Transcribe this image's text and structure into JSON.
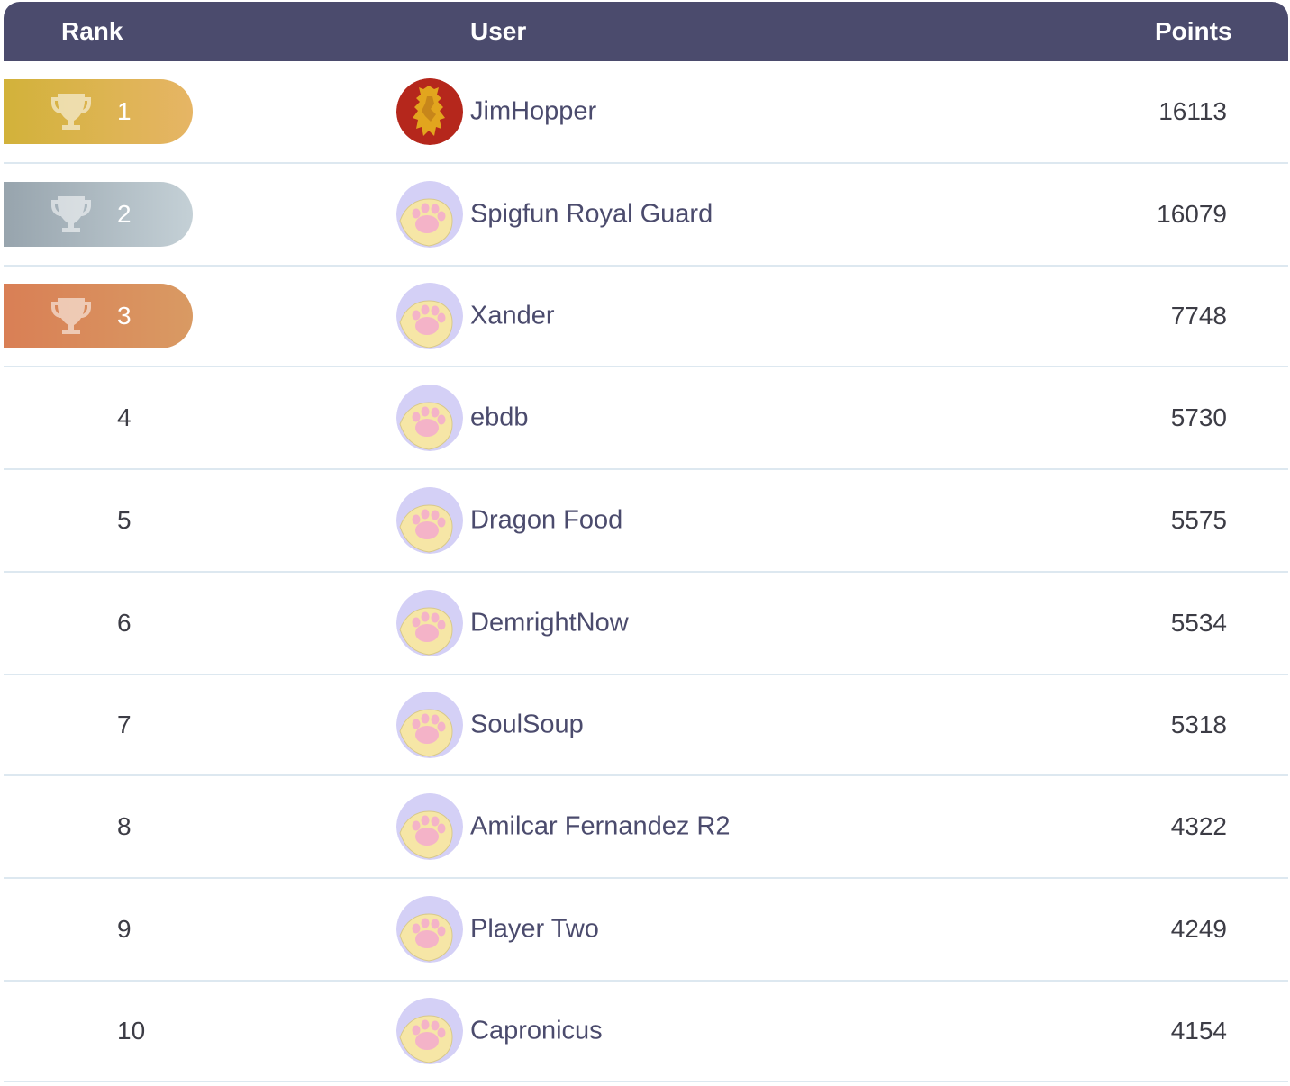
{
  "header": {
    "rank": "Rank",
    "user": "User",
    "points": "Points"
  },
  "colors": {
    "header_bg": "#4b4b6d",
    "gold": "#d2b23a",
    "silver": "#97a4ad",
    "bronze": "#d97f55",
    "row_divider": "#dde8f0"
  },
  "rows": [
    {
      "rank": "1",
      "user": "JimHopper",
      "points": "16113",
      "medal": "gold",
      "avatar": "lion-crest-icon"
    },
    {
      "rank": "2",
      "user": "Spigfun Royal Guard",
      "points": "16079",
      "medal": "silver",
      "avatar": "paw-icon"
    },
    {
      "rank": "3",
      "user": "Xander",
      "points": "7748",
      "medal": "bronze",
      "avatar": "paw-icon"
    },
    {
      "rank": "4",
      "user": "ebdb",
      "points": "5730",
      "medal": "",
      "avatar": "paw-icon"
    },
    {
      "rank": "5",
      "user": "Dragon Food",
      "points": "5575",
      "medal": "",
      "avatar": "paw-icon"
    },
    {
      "rank": "6",
      "user": "DemrightNow",
      "points": "5534",
      "medal": "",
      "avatar": "paw-icon"
    },
    {
      "rank": "7",
      "user": "SoulSoup",
      "points": "5318",
      "medal": "",
      "avatar": "paw-icon"
    },
    {
      "rank": "8",
      "user": "Amilcar Fernandez R2",
      "points": "4322",
      "medal": "",
      "avatar": "paw-icon"
    },
    {
      "rank": "9",
      "user": "Player Two",
      "points": "4249",
      "medal": "",
      "avatar": "paw-icon"
    },
    {
      "rank": "10",
      "user": "Capronicus",
      "points": "4154",
      "medal": "",
      "avatar": "paw-icon"
    }
  ]
}
